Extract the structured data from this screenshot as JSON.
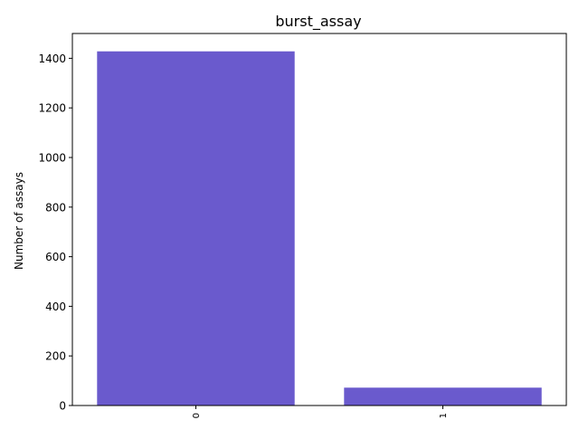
{
  "chart_data": {
    "type": "bar",
    "title": "burst_assay",
    "xlabel": "",
    "ylabel": "Number of assays",
    "categories": [
      "0",
      "1"
    ],
    "values": [
      1428,
      72
    ],
    "ylim": [
      0,
      1500
    ],
    "yticks": [
      0,
      200,
      400,
      600,
      800,
      1000,
      1200,
      1400
    ],
    "bar_color": "#6a5acd",
    "grid": false,
    "legend": "none",
    "xtick_rotation": "vertical"
  }
}
